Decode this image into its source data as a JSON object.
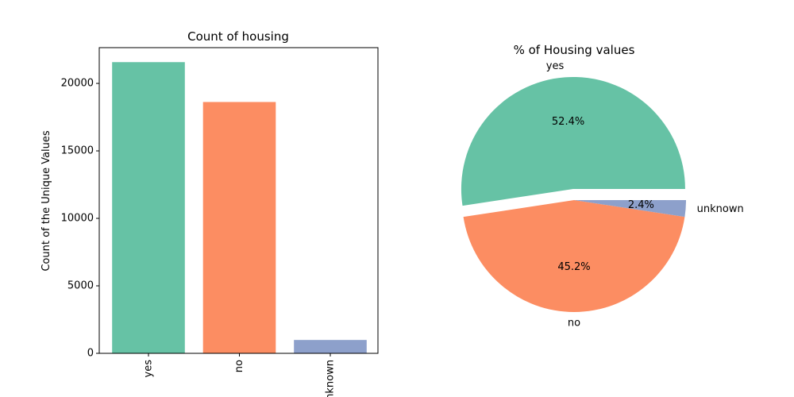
{
  "chart_data": [
    {
      "type": "bar",
      "title": "Count of housing",
      "xlabel": "",
      "ylabel": "Count of the Unique Values",
      "categories": [
        "yes",
        "no",
        "unknown"
      ],
      "values": [
        21576,
        18622,
        990
      ],
      "ylim": [
        0,
        22650
      ],
      "yticks": [
        0,
        5000,
        10000,
        15000,
        20000
      ],
      "ytick_labels": [
        "0",
        "5000",
        "10000",
        "15000",
        "20000"
      ],
      "colors": [
        "#66c2a5",
        "#fc8d62",
        "#8da0cb"
      ],
      "grid": false,
      "legend": "none"
    },
    {
      "type": "pie",
      "title": "% of Housing values",
      "labels": [
        "yes",
        "no",
        "unknown"
      ],
      "values": [
        52.4,
        45.2,
        2.4
      ],
      "pct_labels": [
        "52.4%",
        "45.2%",
        "2.4%"
      ],
      "colors": [
        "#66c2a5",
        "#fc8d62",
        "#8da0cb"
      ],
      "explode": [
        0.1,
        0,
        0
      ],
      "start_angle": 0,
      "legend": "none"
    }
  ]
}
